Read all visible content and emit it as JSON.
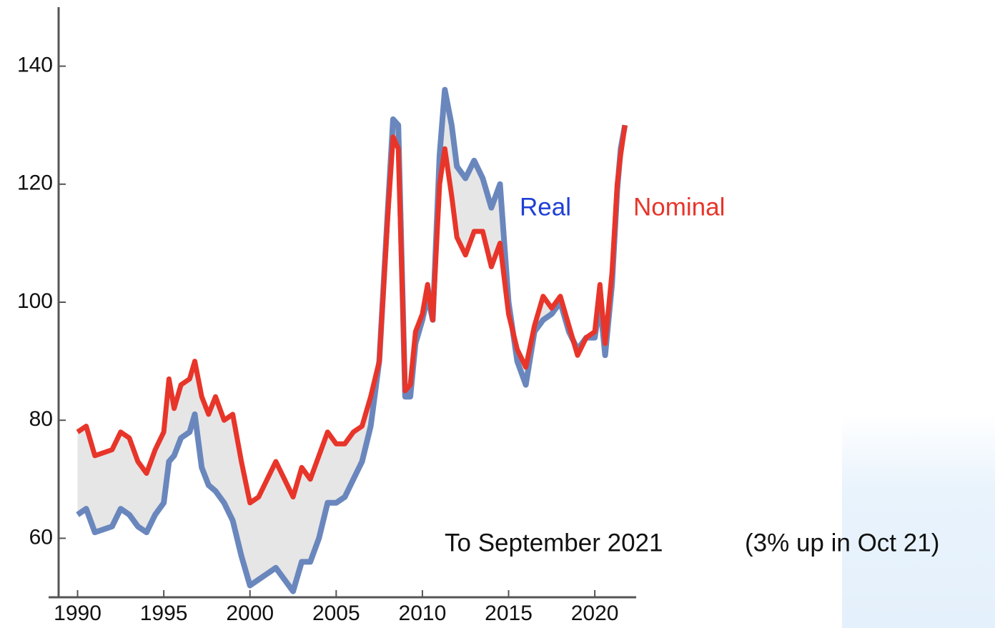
{
  "chart_data": {
    "type": "line",
    "annotations": [
      "To September 2021",
      "(3% up in Oct 21)"
    ],
    "x": [
      1990,
      1990.5,
      1991,
      1992,
      1992.5,
      1993,
      1993.5,
      1994,
      1994.5,
      1995,
      1995.3,
      1995.6,
      1996,
      1996.5,
      1996.8,
      1997.2,
      1997.6,
      1998,
      1998.5,
      1999,
      1999.5,
      2000,
      2000.5,
      2001,
      2001.5,
      2002,
      2002.5,
      2003,
      2003.5,
      2004,
      2004.5,
      2005,
      2005.5,
      2006,
      2006.5,
      2007,
      2007.5,
      2008,
      2008.3,
      2008.6,
      2009,
      2009.3,
      2009.6,
      2010,
      2010.3,
      2010.6,
      2011,
      2011.3,
      2011.7,
      2012,
      2012.5,
      2013,
      2013.5,
      2014,
      2014.5,
      2015,
      2015.5,
      2016,
      2016.5,
      2017,
      2017.5,
      2018,
      2018.5,
      2019,
      2019.5,
      2020,
      2020.3,
      2020.6,
      2021,
      2021.3,
      2021.5,
      2021.75
    ],
    "series": [
      {
        "name": "Real",
        "color": "#6a87bd",
        "values": [
          64,
          65,
          61,
          62,
          65,
          64,
          62,
          61,
          64,
          66,
          73,
          74,
          77,
          78,
          81,
          72,
          69,
          68,
          66,
          63,
          57,
          52,
          53,
          54,
          55,
          53,
          51,
          56,
          56,
          60,
          66,
          66,
          67,
          70,
          73,
          79,
          90,
          116,
          131,
          130,
          84,
          84,
          93,
          97,
          101,
          97,
          125,
          136,
          130,
          123,
          121,
          124,
          121,
          116,
          120,
          100,
          90,
          86,
          95,
          97,
          98,
          100,
          95,
          92,
          94,
          94,
          100,
          91,
          103,
          119,
          126,
          130
        ]
      },
      {
        "name": "Nominal",
        "color": "#e8352a",
        "values": [
          78,
          79,
          74,
          75,
          78,
          77,
          73,
          71,
          75,
          78,
          87,
          82,
          86,
          87,
          90,
          84,
          81,
          84,
          80,
          81,
          73,
          66,
          67,
          70,
          73,
          70,
          67,
          72,
          70,
          74,
          78,
          76,
          76,
          78,
          79,
          84,
          90,
          115,
          128,
          126,
          85,
          86,
          95,
          98,
          103,
          97,
          120,
          126,
          118,
          111,
          108,
          112,
          112,
          106,
          110,
          98,
          92,
          89,
          96,
          101,
          99,
          101,
          96,
          91,
          94,
          95,
          103,
          93,
          105,
          120,
          125,
          130
        ]
      }
    ],
    "fill_between": true,
    "fill_color": "#e6e6e6",
    "xlim": [
      1988.9,
      2022.4
    ],
    "ylim": [
      50,
      150
    ],
    "xticks": [
      1990,
      1995,
      2000,
      2005,
      2010,
      2015,
      2020
    ],
    "yticks": [
      60,
      80,
      100,
      120,
      140
    ]
  }
}
